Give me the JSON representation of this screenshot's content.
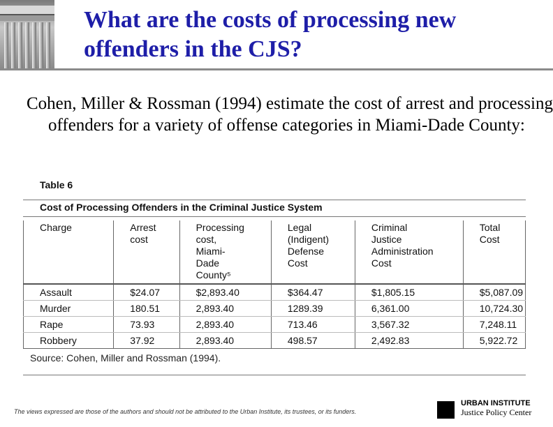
{
  "slide": {
    "title": "What are the costs of processing new offenders in the CJS?",
    "intro": "Cohen, Miller & Rossman (1994) estimate the cost of arrest and processing offenders for a variety of offense categories in Miami-Dade County:"
  },
  "table": {
    "label": "Table 6",
    "caption": "Cost of Processing Offenders in the Criminal Justice System",
    "headers": [
      [
        "Charge"
      ],
      [
        "Arrest",
        "cost"
      ],
      [
        "Processing",
        "cost,",
        "Miami-",
        "Dade",
        "County⁵"
      ],
      [
        "Legal",
        "(Indigent)",
        "Defense",
        "Cost"
      ],
      [
        "Criminal",
        "Justice",
        "Administration",
        "Cost"
      ],
      [
        "Total",
        "Cost"
      ]
    ],
    "rows": [
      [
        "Assault",
        "$24.07",
        "$2,893.40",
        "$364.47",
        "$1,805.15",
        "$5,087.09"
      ],
      [
        "Murder",
        "180.51",
        "2,893.40",
        "1289.39",
        "6,361.00",
        "10,724.30"
      ],
      [
        "Rape",
        "73.93",
        "2,893.40",
        "713.46",
        "3,567.32",
        "7,248.11"
      ],
      [
        "Robbery",
        "37.92",
        "2,893.40",
        "498.57",
        "2,492.83",
        "5,922.72"
      ]
    ],
    "source": "Source: Cohen, Miller and Rossman (1994)."
  },
  "footer": {
    "disclaimer": "The views expressed are those of the authors and should not be attributed to the Urban Institute, its trustees, or its funders.",
    "org_name": "URBAN INSTITUTE",
    "org_center": "Justice Policy Center"
  },
  "colors": {
    "title": "#1e1ea8",
    "rule": "#8a8a8a",
    "logo_square": "#000000"
  },
  "icons": {
    "logo": "greek-column-icon"
  }
}
